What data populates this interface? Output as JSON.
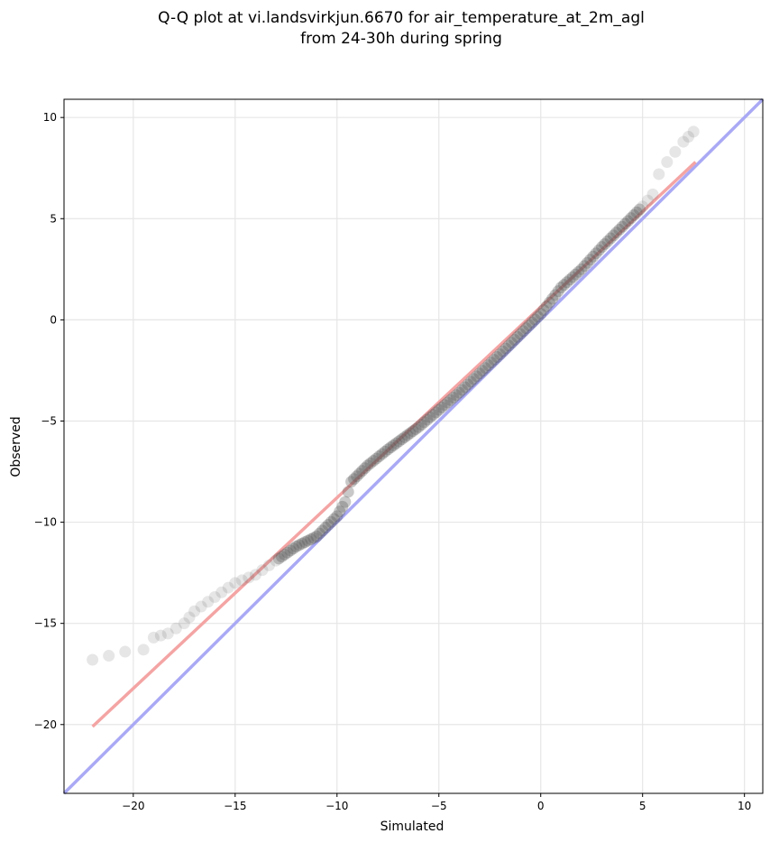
{
  "chart_data": {
    "type": "scatter",
    "title": [
      "Q-Q plot at vi.landsvirkjun.6670 for air_temperature_at_2m_agl",
      "from 24-30h during spring"
    ],
    "xlabel": "Simulated",
    "ylabel": "Observed",
    "xlim": [
      -23.4,
      10.9
    ],
    "ylim": [
      -23.4,
      10.9
    ],
    "xticks": [
      -20,
      -15,
      -10,
      -5,
      0,
      5,
      10
    ],
    "yticks": [
      -20,
      -15,
      -10,
      -5,
      0,
      5,
      10
    ],
    "xtick_labels": [
      "−20",
      "−15",
      "−10",
      "−5",
      "0",
      "5",
      "10"
    ],
    "ytick_labels": [
      "−20",
      "−15",
      "−10",
      "−5",
      "0",
      "5",
      "10"
    ],
    "grid": true,
    "colors": {
      "points": "#555555",
      "fit_line": "#f4a4a4",
      "identity_line": "#a9a9f5"
    },
    "series": [
      {
        "kind": "points",
        "quantile_breakpoints": [
          [
            -22.0,
            -16.8
          ],
          [
            -20.4,
            -16.4
          ],
          [
            -19.5,
            -16.3
          ],
          [
            -19.0,
            -15.7
          ],
          [
            -18.3,
            -15.5
          ],
          [
            -17.5,
            -15.0
          ],
          [
            -17.0,
            -14.4
          ],
          [
            -16.0,
            -13.7
          ],
          [
            -15.0,
            -13.0
          ],
          [
            -14.0,
            -12.6
          ],
          [
            -13.0,
            -11.9
          ],
          [
            -12.0,
            -11.2
          ],
          [
            -11.0,
            -10.7
          ],
          [
            -10.0,
            -9.7
          ],
          [
            -9.6,
            -9.0
          ],
          [
            -9.3,
            -8.0
          ],
          [
            -8.5,
            -7.2
          ],
          [
            -7.5,
            -6.4
          ],
          [
            -6.0,
            -5.3
          ],
          [
            -4.0,
            -3.6
          ],
          [
            -2.0,
            -1.7
          ],
          [
            0.0,
            0.3
          ],
          [
            1.0,
            1.6
          ],
          [
            2.0,
            2.5
          ],
          [
            3.0,
            3.6
          ],
          [
            4.0,
            4.6
          ],
          [
            5.0,
            5.6
          ],
          [
            5.5,
            6.2
          ],
          [
            5.8,
            7.2
          ],
          [
            6.2,
            7.8
          ],
          [
            7.0,
            8.8
          ],
          [
            7.5,
            9.3
          ]
        ]
      },
      {
        "kind": "fit_line",
        "x": [
          -22.0,
          7.6
        ],
        "y": [
          -20.1,
          7.8
        ]
      },
      {
        "kind": "identity_line",
        "x": [
          -23.4,
          10.9
        ],
        "y": [
          -23.4,
          10.9
        ]
      }
    ]
  }
}
